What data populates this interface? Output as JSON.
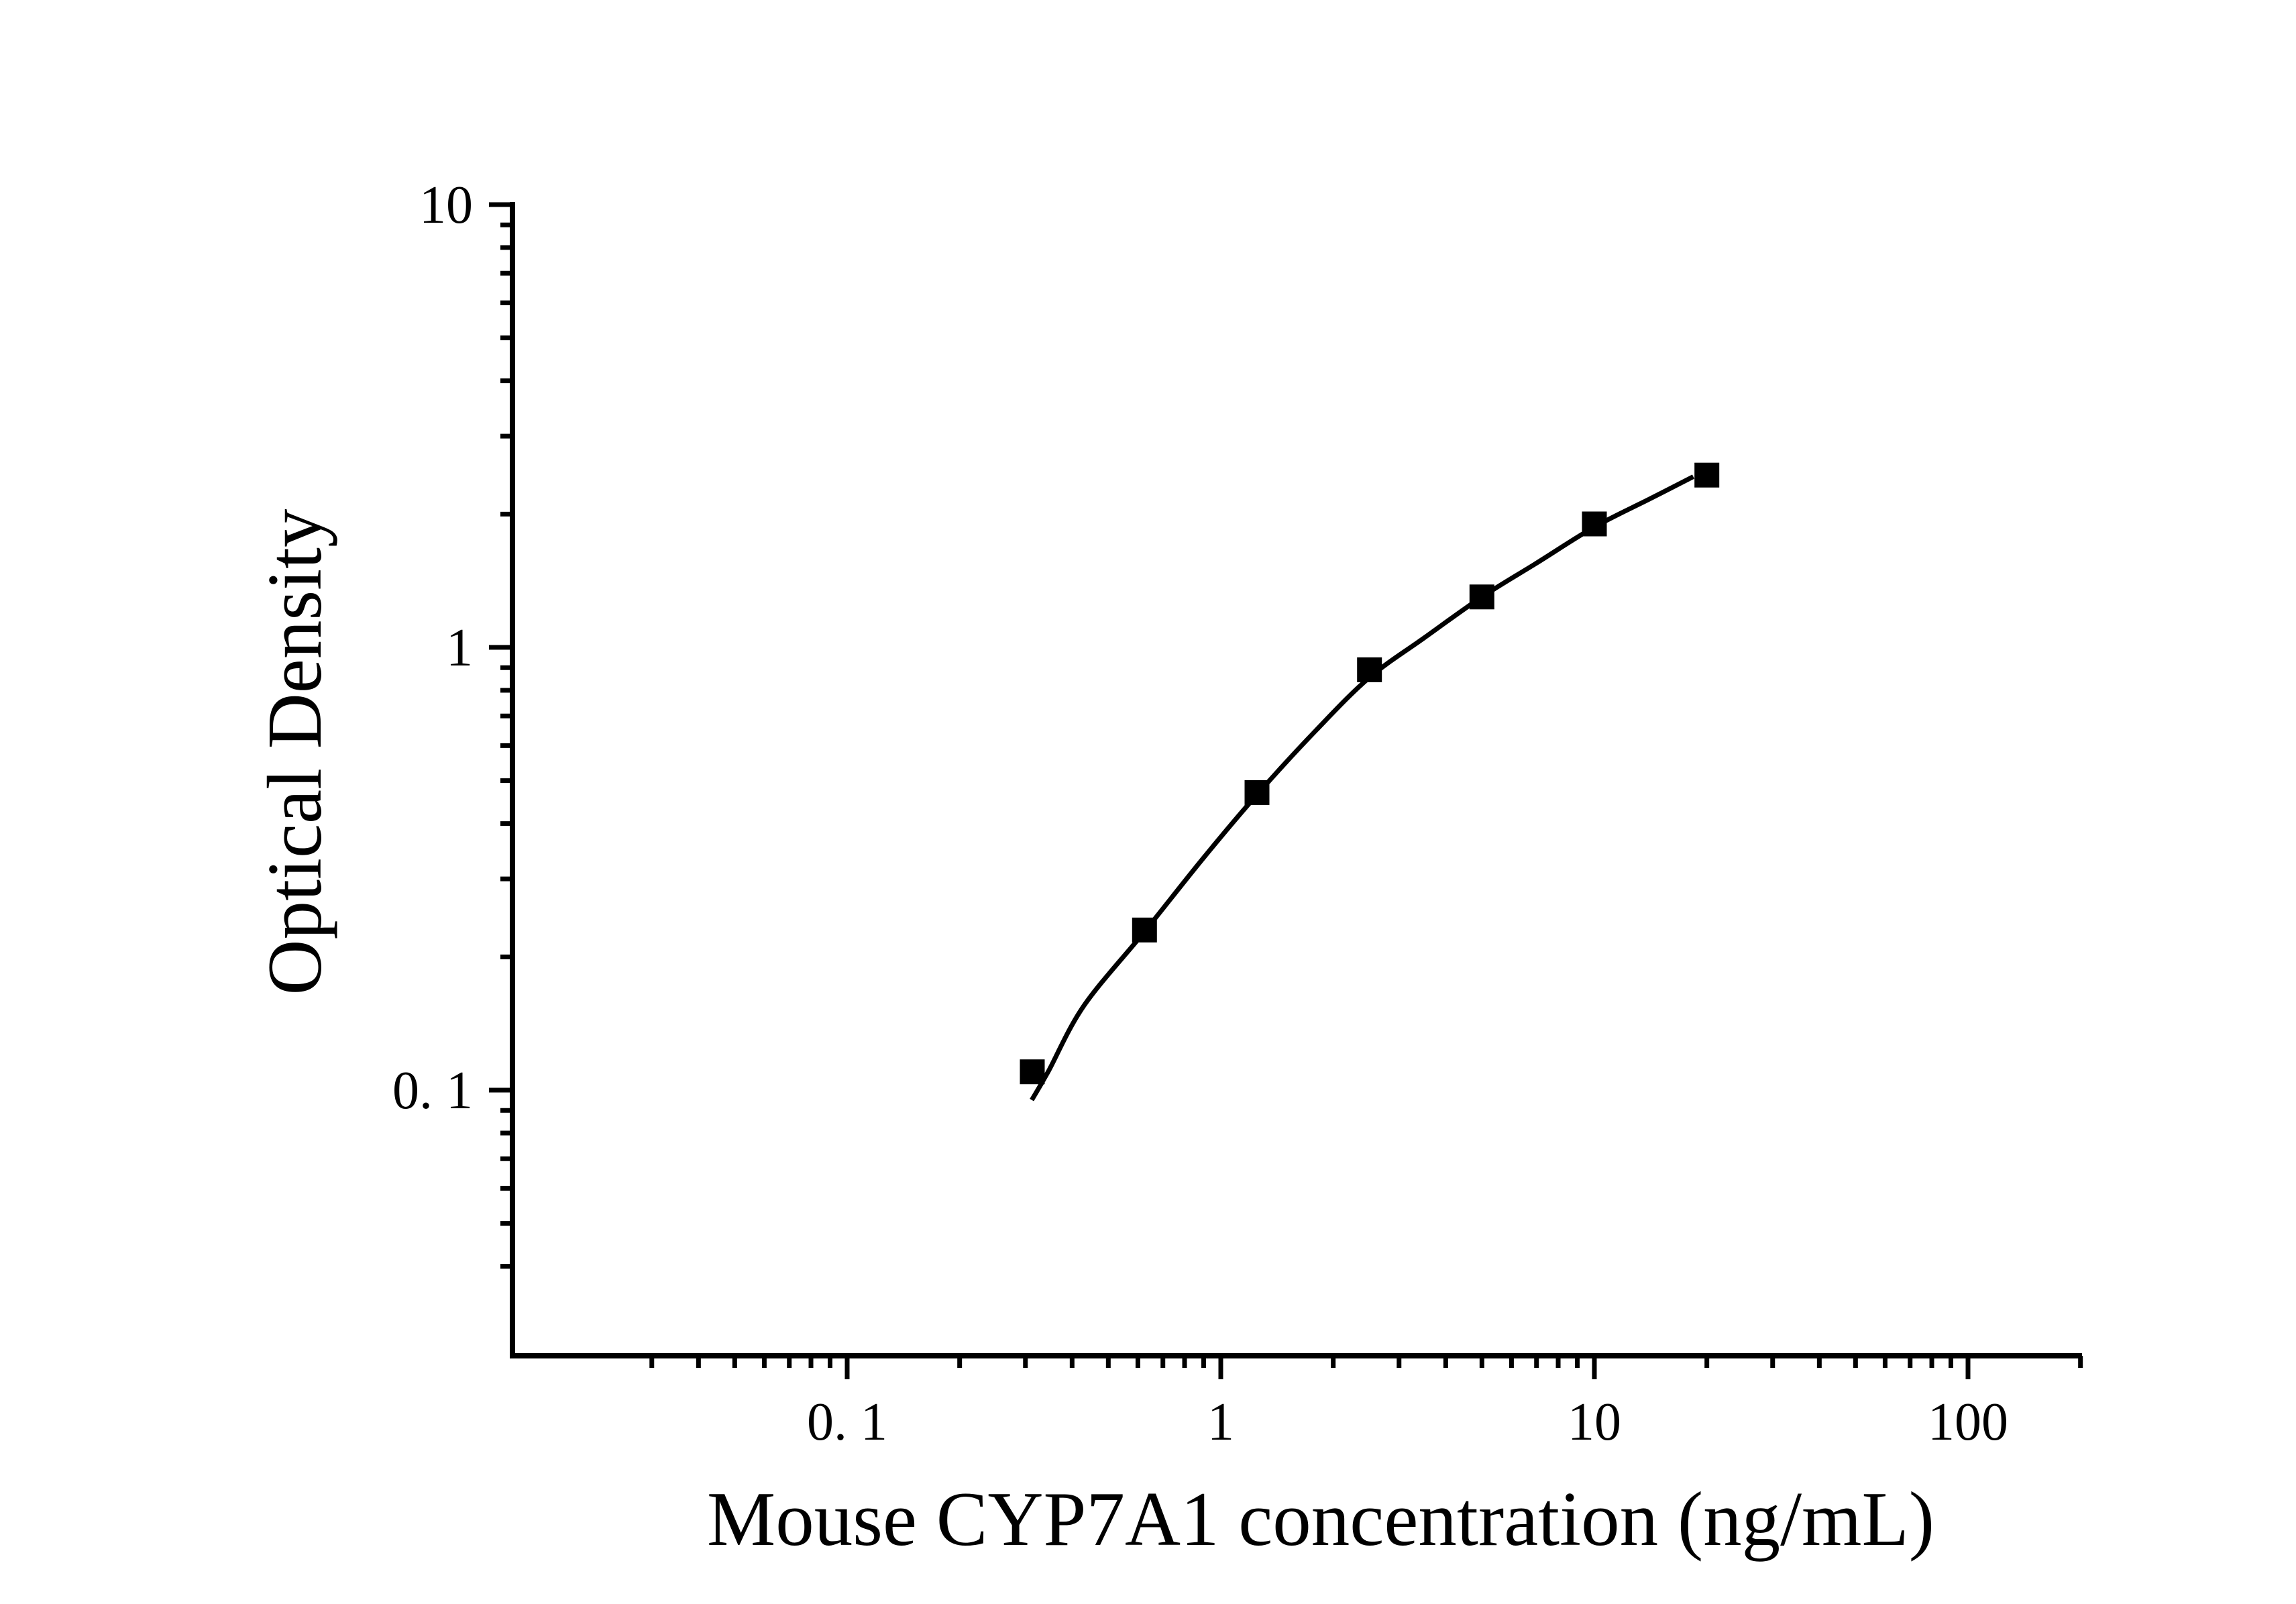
{
  "figure": {
    "background_color": "#ffffff",
    "ink_color": "#000000"
  },
  "chart_data": {
    "type": "scatter",
    "title": "",
    "xlabel": "Mouse  CYP7A1 concentration (ng/mL)",
    "ylabel": "Optical Density",
    "x_scale": "log",
    "y_scale": "log",
    "xlim": [
      0.013,
      205
    ],
    "ylim": [
      0.025,
      10
    ],
    "grid": false,
    "legend": "none",
    "x_ticks": [
      {
        "value": 0.1,
        "label": "0. 1"
      },
      {
        "value": 1,
        "label": "1"
      },
      {
        "value": 10,
        "label": "10"
      },
      {
        "value": 100,
        "label": "100"
      }
    ],
    "y_ticks": [
      {
        "value": 0.1,
        "label": "0. 1"
      },
      {
        "value": 1,
        "label": "1"
      },
      {
        "value": 10,
        "label": "10"
      }
    ],
    "series": [
      {
        "name": "standard-points",
        "kind": "scatter",
        "marker": "filled-square",
        "color": "#000000",
        "points": [
          {
            "x": 0.313,
            "y": 0.11
          },
          {
            "x": 0.625,
            "y": 0.23
          },
          {
            "x": 1.25,
            "y": 0.47
          },
          {
            "x": 2.5,
            "y": 0.89
          },
          {
            "x": 5,
            "y": 1.3
          },
          {
            "x": 10,
            "y": 1.9
          },
          {
            "x": 20,
            "y": 2.45
          }
        ]
      },
      {
        "name": "fitted-curve",
        "kind": "line",
        "color": "#000000",
        "points": [
          {
            "x": 0.312,
            "y": 0.095
          },
          {
            "x": 0.345,
            "y": 0.11
          },
          {
            "x": 0.43,
            "y": 0.155
          },
          {
            "x": 0.625,
            "y": 0.228
          },
          {
            "x": 0.9,
            "y": 0.335
          },
          {
            "x": 1.25,
            "y": 0.465
          },
          {
            "x": 1.8,
            "y": 0.65
          },
          {
            "x": 2.5,
            "y": 0.855
          },
          {
            "x": 3.5,
            "y": 1.05
          },
          {
            "x": 5,
            "y": 1.3
          },
          {
            "x": 7,
            "y": 1.55
          },
          {
            "x": 10,
            "y": 1.87
          },
          {
            "x": 14,
            "y": 2.16
          },
          {
            "x": 18.4,
            "y": 2.43
          }
        ]
      }
    ]
  }
}
